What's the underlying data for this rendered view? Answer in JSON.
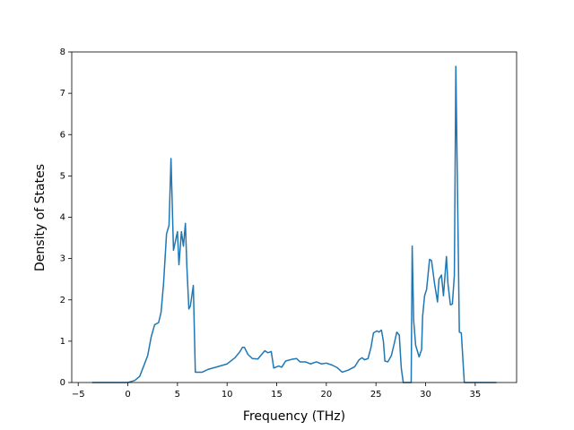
{
  "chart_data": {
    "type": "line",
    "x_label": "Frequency (THz)",
    "y_label": "Density of States",
    "x": [
      -3.6,
      0,
      0.7,
      1.2,
      1.6,
      2,
      2.35,
      2.7,
      3.1,
      3.35,
      3.6,
      3.9,
      4.15,
      4.35,
      4.6,
      5,
      5.15,
      5.4,
      5.6,
      5.8,
      5.95,
      6.15,
      6.3,
      6.6,
      6.8,
      7.5,
      8.1,
      9,
      10,
      10.8,
      11.3,
      11.55,
      11.75,
      12.1,
      12.55,
      13.1,
      13.55,
      13.8,
      14.1,
      14.45,
      14.7,
      15.2,
      15.5,
      15.9,
      16.5,
      17,
      17.35,
      17.9,
      18.4,
      19,
      19.5,
      20,
      20.6,
      21.1,
      21.6,
      22.2,
      22.85,
      23.3,
      23.6,
      23.85,
      24.2,
      24.5,
      24.75,
      25.1,
      25.3,
      25.55,
      25.75,
      25.9,
      26.2,
      26.55,
      26.8,
      27.1,
      27.35,
      27.55,
      27.75,
      28.55,
      28.65,
      28.8,
      29,
      29.35,
      29.6,
      29.7,
      29.9,
      30.1,
      30.4,
      30.6,
      30.9,
      31.2,
      31.35,
      31.6,
      31.8,
      32.1,
      32.25,
      32.5,
      32.7,
      32.9,
      33.05,
      33.25,
      33.4,
      33.6,
      33.9,
      37.13
    ],
    "series": [
      {
        "color": "#1f77b4",
        "values": [
          0,
          0,
          0.05,
          0.15,
          0.4,
          0.65,
          1.1,
          1.4,
          1.45,
          1.7,
          2.4,
          3.6,
          3.8,
          5.42,
          3.2,
          3.65,
          2.85,
          3.65,
          3.3,
          3.85,
          2.8,
          1.78,
          1.85,
          2.35,
          0.25,
          0.25,
          0.32,
          0.38,
          0.45,
          0.6,
          0.75,
          0.85,
          0.85,
          0.68,
          0.58,
          0.57,
          0.7,
          0.77,
          0.72,
          0.75,
          0.35,
          0.4,
          0.37,
          0.52,
          0.56,
          0.58,
          0.5,
          0.5,
          0.45,
          0.5,
          0.45,
          0.47,
          0.42,
          0.36,
          0.25,
          0.3,
          0.38,
          0.55,
          0.6,
          0.55,
          0.58,
          0.85,
          1.2,
          1.25,
          1.22,
          1.27,
          1.0,
          0.52,
          0.5,
          0.65,
          0.9,
          1.22,
          1.15,
          0.35,
          0,
          0,
          3.3,
          1.5,
          0.9,
          0.62,
          0.8,
          1.6,
          2.1,
          2.25,
          2.98,
          2.95,
          2.4,
          1.95,
          2.5,
          2.6,
          2.1,
          3.05,
          2.4,
          1.88,
          1.9,
          2.6,
          7.65,
          4,
          1.22,
          1.2,
          0,
          0
        ]
      }
    ],
    "xlim": [
      -5.65,
      39.17
    ],
    "ylim": [
      0,
      8
    ],
    "xticks": [
      {
        "value": -5,
        "label": "−5"
      },
      0,
      5,
      10,
      15,
      20,
      25,
      30,
      35
    ],
    "yticks": [
      0,
      1,
      2,
      3,
      4,
      5,
      6,
      7,
      8
    ],
    "grid": false
  }
}
